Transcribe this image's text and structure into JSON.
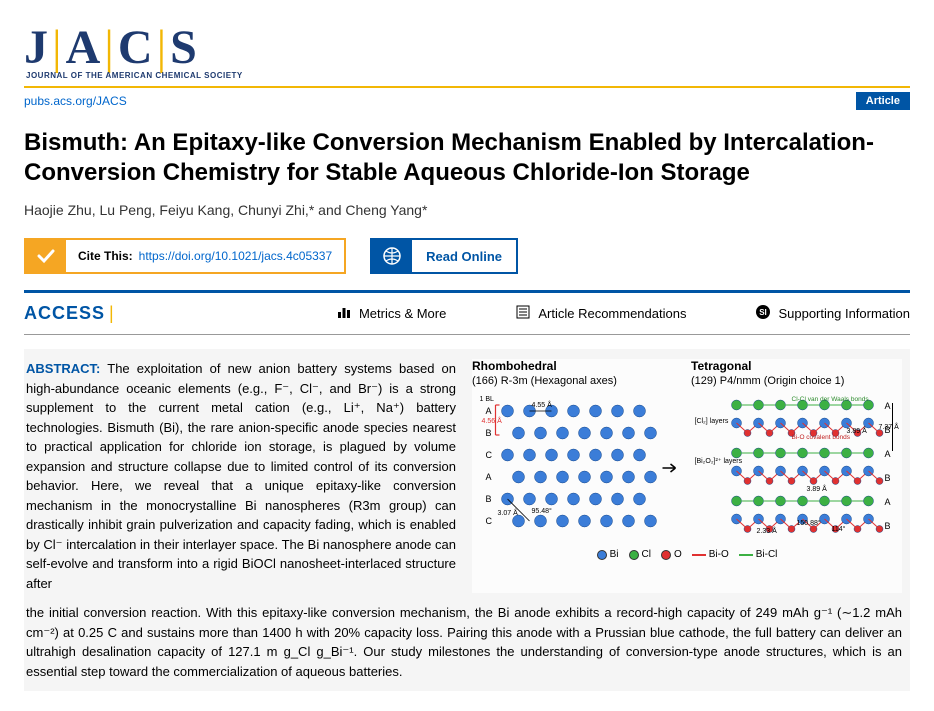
{
  "journal": {
    "logo_letters": [
      "J",
      "A",
      "C",
      "S"
    ],
    "subtitle": "JOURNAL OF THE AMERICAN CHEMICAL SOCIETY",
    "pubs_link": "pubs.acs.org/JACS",
    "badge": "Article",
    "colors": {
      "brand_blue": "#1e3a6f",
      "accent_yellow": "#f2b705",
      "link_blue": "#0066cc",
      "acs_blue": "#0055a5",
      "orange": "#f5a623"
    }
  },
  "article": {
    "title": "Bismuth: An Epitaxy-like Conversion Mechanism Enabled by Intercalation-Conversion Chemistry for Stable Aqueous Chloride-Ion Storage",
    "authors_html": "Haojie Zhu, Lu Peng, Feiyu Kang, Chunyi Zhi,* and Cheng Yang*",
    "cite_label": "Cite This:",
    "doi": "https://doi.org/10.1021/jacs.4c05337",
    "read_online": "Read Online"
  },
  "access": {
    "label": "ACCESS",
    "metrics": "Metrics & More",
    "recs": "Article Recommendations",
    "si": "Supporting Information"
  },
  "abstract": {
    "lead": "ABSTRACT:",
    "para1": "The exploitation of new anion battery systems based on high-abundance oceanic elements (e.g., F⁻, Cl⁻, and Br⁻) is a strong supplement to the current metal cation (e.g., Li⁺, Na⁺) battery technologies. Bismuth (Bi), the rare anion-specific anode species nearest to practical application for chloride ion storage, is plagued by volume expansion and structure collapse due to limited control of its conversion behavior. Here, we reveal that a unique epitaxy-like conversion mechanism in the monocrystalline Bi nanospheres (R3m group) can drastically inhibit grain pulverization and capacity fading, which is enabled by Cl⁻ intercalation in their interlayer space. The Bi nanosphere anode can self-evolve and transform into a rigid BiOCl nanosheet-interlaced structure after",
    "para2": "the initial conversion reaction. With this epitaxy-like conversion mechanism, the Bi anode exhibits a record-high capacity of 249 mAh g⁻¹ (∼1.2 mAh cm⁻²) at 0.25 C and sustains more than 1400 h with 20% capacity loss. Pairing this anode with a Prussian blue cathode, the full battery can deliver an ultrahigh desalination capacity of 127.1 m g_Cl g_Bi⁻¹. Our study milestones the understanding of conversion-type anode structures, which is an essential step toward the commercialization of aqueous batteries."
  },
  "figure": {
    "left": {
      "head": "Rhombohedral",
      "sub": "(166) R-3m (Hexagonal axes)",
      "labels": {
        "bl": "1 BL",
        "d1": "4.55 Å",
        "d2": "3.07 Å",
        "d3": "4.56 Å",
        "ang": "95.48°",
        "rows": [
          "A",
          "B",
          "C",
          "A",
          "B",
          "C"
        ]
      }
    },
    "right": {
      "head": "Tetragonal",
      "sub": "(129) P4/nmm (Origin choice 1)",
      "labels": {
        "layers1": "[Cl₂] layers",
        "layers2": "[Bi₂O₂]²⁺ layers",
        "bond1": "Cl-Cl van der Waals bonds",
        "bond2": "Bi-O covalent bonds",
        "d1": "7.37 Å",
        "d2": "3.89 Å",
        "d3": "3.89 Å",
        "ang": "150.88°",
        "ang2": "114°",
        "d4": "2.33 Å",
        "rows": [
          "A",
          "B",
          "A",
          "B",
          "A",
          "B"
        ]
      }
    },
    "legend": [
      {
        "type": "dot",
        "color": "#3b7dd8",
        "label": "Bi"
      },
      {
        "type": "dot",
        "color": "#3cb043",
        "label": "Cl"
      },
      {
        "type": "dot",
        "color": "#e03131",
        "label": "O"
      },
      {
        "type": "line",
        "color": "#e03131",
        "label": "Bi-O"
      },
      {
        "type": "line",
        "color": "#3cb043",
        "label": "Bi-Cl"
      }
    ],
    "colors": {
      "bi": "#3b7dd8",
      "cl": "#3cb043",
      "o": "#e03131"
    }
  }
}
